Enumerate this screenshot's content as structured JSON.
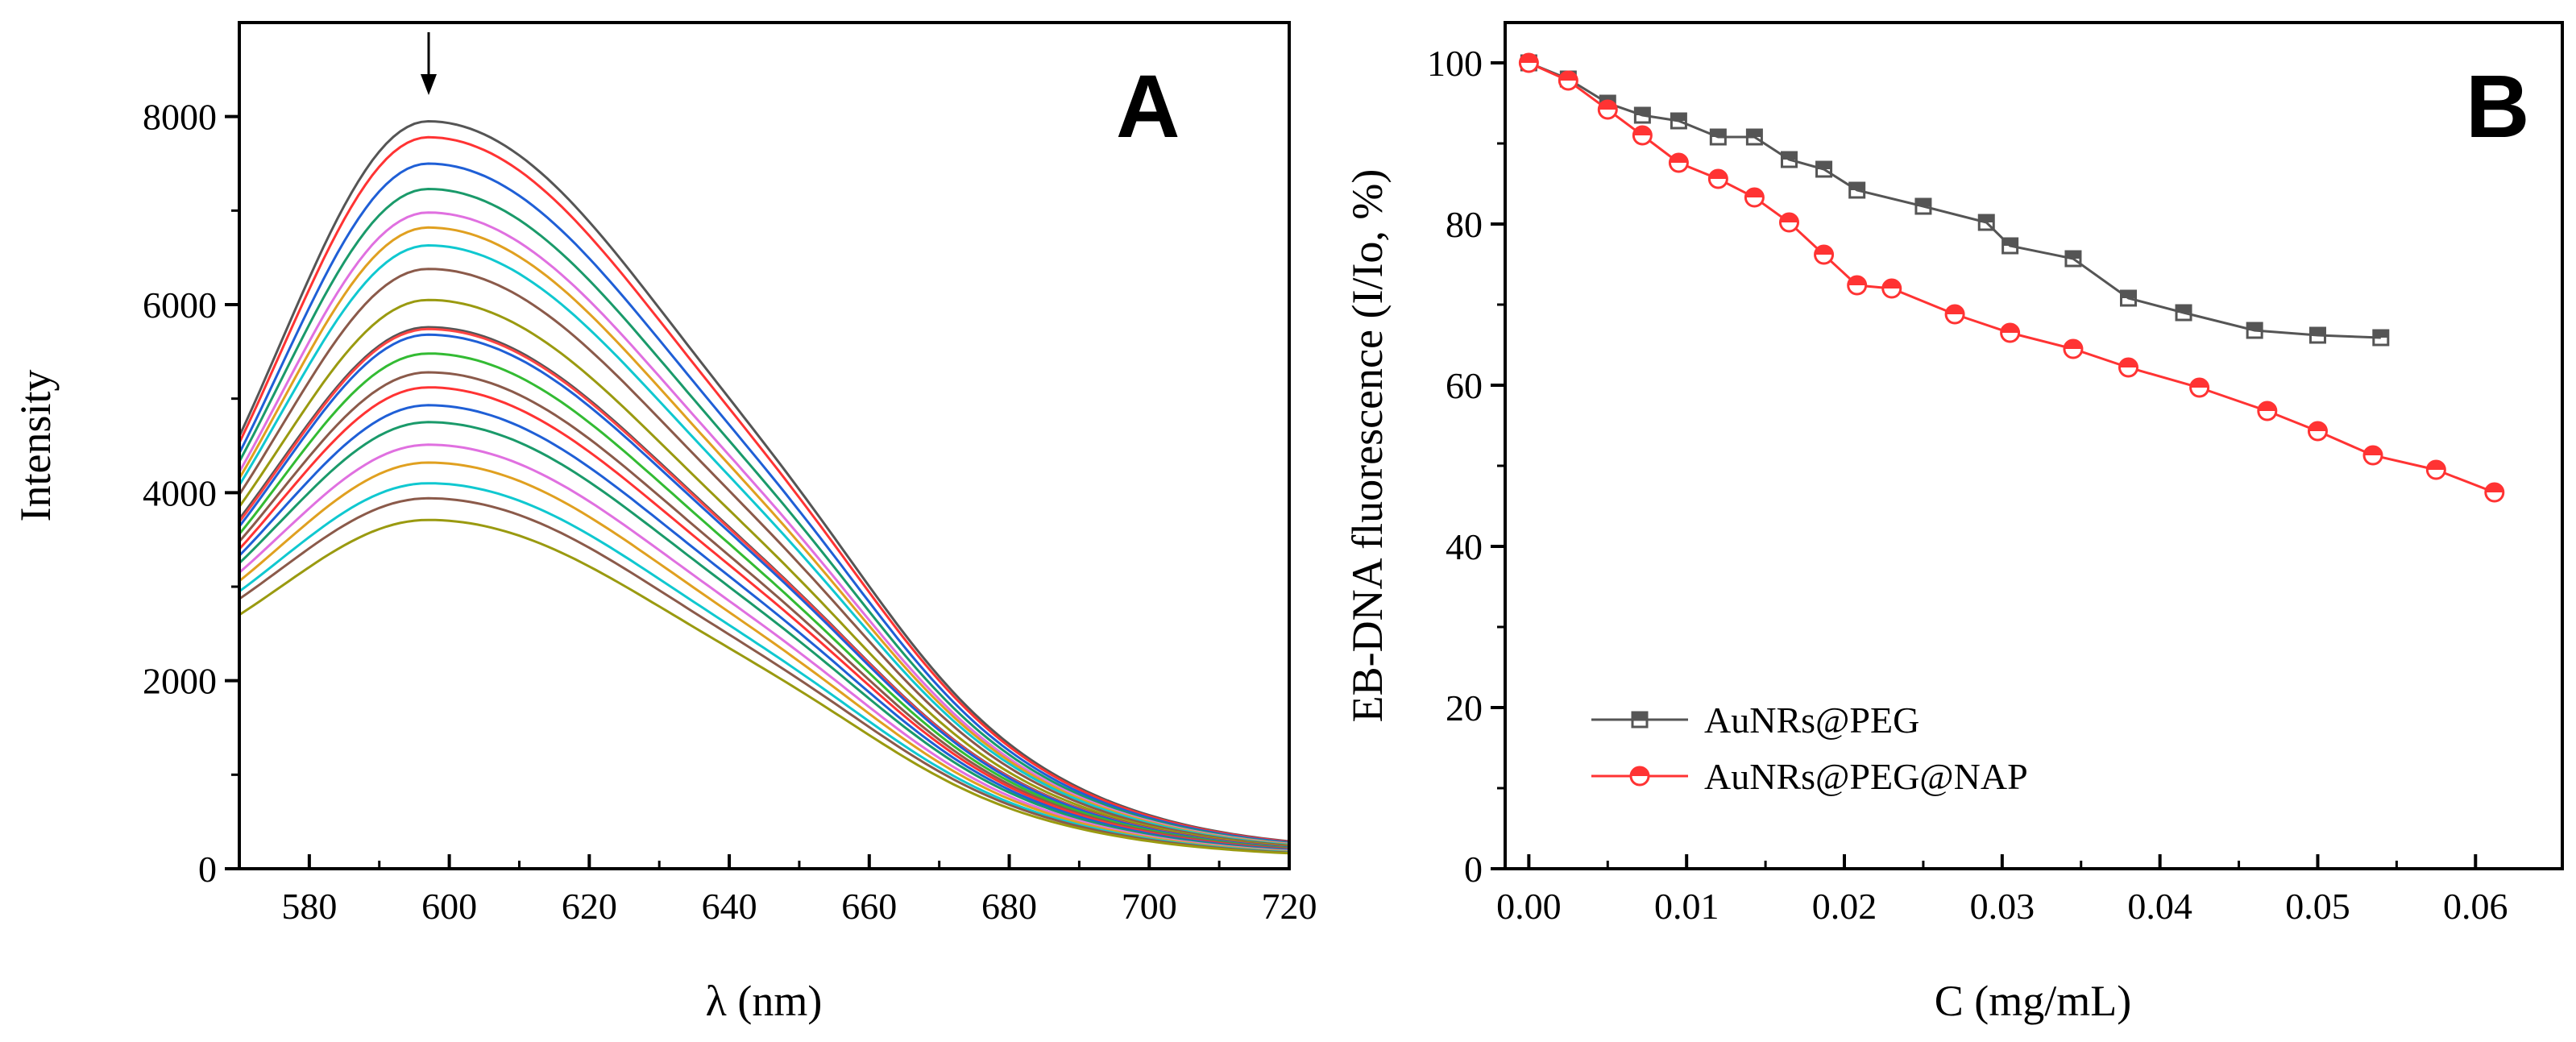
{
  "chart_data": [
    {
      "type": "line",
      "panel_label": "A",
      "xlabel": "λ (nm)",
      "ylabel": "Intensity",
      "xlim": [
        570,
        720
      ],
      "ylim": [
        0,
        9000
      ],
      "x_ticks": [
        580,
        600,
        620,
        640,
        660,
        680,
        700,
        720
      ],
      "y_ticks": [
        0,
        2000,
        4000,
        6000,
        8000
      ],
      "peak_wavelength": 597,
      "annotation": "arrow indicating decreasing intensity with addition",
      "series": [
        {
          "name": "s1",
          "color": "#555555",
          "peak": 7950,
          "start": 4600
        },
        {
          "name": "s2",
          "color": "#ff3333",
          "peak": 7780,
          "start": 4530
        },
        {
          "name": "s3",
          "color": "#1f5fd6",
          "peak": 7500,
          "start": 4420
        },
        {
          "name": "s4",
          "color": "#1a9a6a",
          "peak": 7230,
          "start": 4330
        },
        {
          "name": "s5",
          "color": "#e070e0",
          "peak": 6980,
          "start": 4220
        },
        {
          "name": "s6",
          "color": "#e0a020",
          "peak": 6820,
          "start": 4150
        },
        {
          "name": "s7",
          "color": "#10c8d0",
          "peak": 6630,
          "start": 4080
        },
        {
          "name": "s8",
          "color": "#8b5a4a",
          "peak": 6380,
          "start": 3980
        },
        {
          "name": "s9",
          "color": "#9a9a10",
          "peak": 6050,
          "start": 3850
        },
        {
          "name": "s10",
          "color": "#555555",
          "peak": 5760,
          "start": 3720
        },
        {
          "name": "s11",
          "color": "#ff4444",
          "peak": 5740,
          "start": 3690
        },
        {
          "name": "s12",
          "color": "#1f5fd6",
          "peak": 5680,
          "start": 3640
        },
        {
          "name": "s13",
          "color": "#33bb33",
          "peak": 5480,
          "start": 3560
        },
        {
          "name": "s14",
          "color": "#8b5a4a",
          "peak": 5280,
          "start": 3480
        },
        {
          "name": "s15",
          "color": "#ff3333",
          "peak": 5120,
          "start": 3400
        },
        {
          "name": "s16",
          "color": "#1f5fd6",
          "peak": 4930,
          "start": 3330
        },
        {
          "name": "s17",
          "color": "#1a9a6a",
          "peak": 4750,
          "start": 3250
        },
        {
          "name": "s18",
          "color": "#e070e0",
          "peak": 4510,
          "start": 3150
        },
        {
          "name": "s19",
          "color": "#e0a020",
          "peak": 4320,
          "start": 3060
        },
        {
          "name": "s20",
          "color": "#10c8d0",
          "peak": 4100,
          "start": 2950
        },
        {
          "name": "s21",
          "color": "#8b5a4a",
          "peak": 3940,
          "start": 2870
        },
        {
          "name": "s22",
          "color": "#9a9a10",
          "peak": 3710,
          "start": 2700
        }
      ]
    },
    {
      "type": "line",
      "panel_label": "B",
      "xlabel": "C (mg/mL)",
      "ylabel": "EB-DNA fluorescence (I/Io, %)",
      "xlim": [
        -0.0015,
        0.0655
      ],
      "ylim": [
        0,
        105
      ],
      "x_ticks": [
        "0.00",
        "0.01",
        "0.02",
        "0.03",
        "0.04",
        "0.05",
        "0.06"
      ],
      "y_ticks": [
        0,
        20,
        40,
        60,
        80,
        100
      ],
      "legend_position": "lower-left",
      "series": [
        {
          "name": "AuNRs@PEG",
          "color": "#555555",
          "marker": "half-filled square",
          "x": [
            0.0,
            0.0025,
            0.005,
            0.0072,
            0.0095,
            0.012,
            0.0143,
            0.0165,
            0.0187,
            0.0208,
            0.025,
            0.029,
            0.0305,
            0.0345,
            0.038,
            0.0415,
            0.046,
            0.05,
            0.054
          ],
          "y": [
            100,
            98,
            95,
            93.5,
            92.8,
            90.8,
            90.8,
            88,
            86.8,
            84.2,
            82.2,
            80.2,
            77.3,
            75.7,
            70.8,
            69,
            66.8,
            66.2,
            65.9
          ]
        },
        {
          "name": "AuNRs@PEG@NAP",
          "color": "#ff3333",
          "marker": "half-filled circle",
          "x": [
            0.0,
            0.0025,
            0.005,
            0.0072,
            0.0095,
            0.012,
            0.0143,
            0.0165,
            0.0187,
            0.0208,
            0.023,
            0.027,
            0.0305,
            0.0345,
            0.038,
            0.0425,
            0.0468,
            0.05,
            0.0535,
            0.0575,
            0.0612
          ],
          "y": [
            100,
            97.8,
            94.2,
            91,
            87.6,
            85.6,
            83.3,
            80.2,
            76.2,
            72.4,
            72,
            68.8,
            66.5,
            64.5,
            62.2,
            59.7,
            56.8,
            54.3,
            51.3,
            49.5,
            46.7
          ]
        }
      ]
    }
  ]
}
